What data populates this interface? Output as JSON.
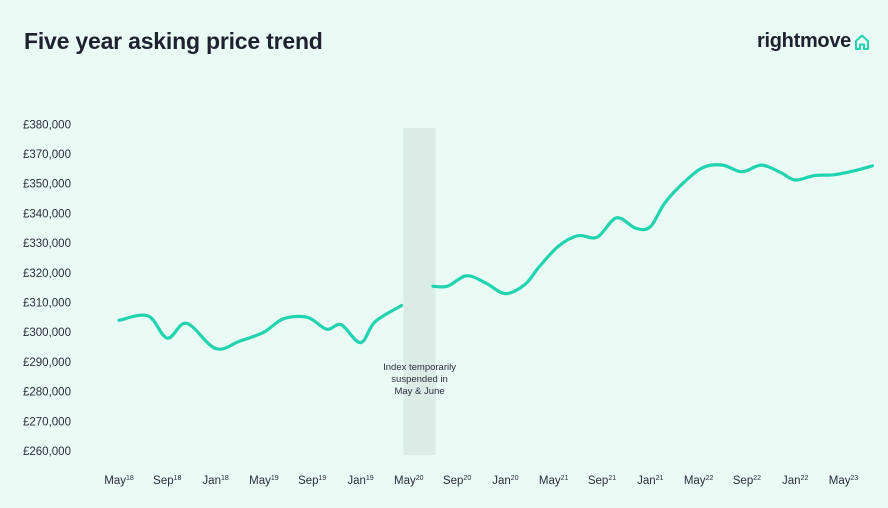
{
  "header": {
    "title": "Five year asking price trend",
    "brand": "rightmove",
    "brand_icon": "house-outline-icon"
  },
  "colors": {
    "background": "#e9fbf4",
    "line": "#22d3b0",
    "gap_band": "#dbece6",
    "text": "#1f2130"
  },
  "chart_data": {
    "type": "line",
    "title": "Five year asking price trend",
    "xlabel": "",
    "ylabel": "",
    "ylim": [
      260000,
      380000
    ],
    "grid": false,
    "y_ticks": [
      "£380,000",
      "£370,000",
      "£350,000",
      "£340,000",
      "£330,000",
      "£320,000",
      "£310,000",
      "£300,000",
      "£290,000",
      "£280,000",
      "£270,000",
      "£260,000"
    ],
    "x_ticks": [
      {
        "base": "May",
        "sup": "18"
      },
      {
        "base": "Sep",
        "sup": "18"
      },
      {
        "base": "Jan",
        "sup": "18"
      },
      {
        "base": "May",
        "sup": "19"
      },
      {
        "base": "Sep",
        "sup": "19"
      },
      {
        "base": "Jan",
        "sup": "19"
      },
      {
        "base": "May",
        "sup": "20"
      },
      {
        "base": "Sep",
        "sup": "20"
      },
      {
        "base": "Jan",
        "sup": "20"
      },
      {
        "base": "May",
        "sup": "21"
      },
      {
        "base": "Sep",
        "sup": "21"
      },
      {
        "base": "Jan",
        "sup": "21"
      },
      {
        "base": "May",
        "sup": "22"
      },
      {
        "base": "Sep",
        "sup": "22"
      },
      {
        "base": "Jan",
        "sup": "22"
      },
      {
        "base": "May",
        "sup": "23"
      }
    ],
    "annotation": [
      "Index temporarily",
      "suspended in",
      "May & June"
    ],
    "series": [
      {
        "segments": [
          [
            [
              0,
              304000
            ],
            [
              0.6,
              305500
            ],
            [
              1.0,
              298000
            ],
            [
              1.4,
              303000
            ],
            [
              2.0,
              294500
            ],
            [
              2.5,
              297000
            ],
            [
              3.0,
              300000
            ],
            [
              3.4,
              304500
            ],
            [
              3.9,
              305000
            ],
            [
              4.3,
              301000
            ],
            [
              4.6,
              302500
            ],
            [
              5.0,
              296500
            ],
            [
              5.3,
              303500
            ],
            [
              5.85,
              309000
            ]
          ],
          [
            [
              6.5,
              315500
            ],
            [
              6.8,
              315500
            ],
            [
              7.2,
              319000
            ],
            [
              7.6,
              316500
            ],
            [
              8.0,
              313000
            ],
            [
              8.4,
              316000
            ],
            [
              8.7,
              322000
            ],
            [
              9.1,
              329000
            ],
            [
              9.5,
              332500
            ],
            [
              9.9,
              332000
            ],
            [
              10.3,
              338500
            ],
            [
              10.7,
              335000
            ],
            [
              11.0,
              335500
            ],
            [
              11.3,
              343500
            ],
            [
              11.7,
              351000
            ],
            [
              12.1,
              361000
            ],
            [
              12.5,
              362500
            ],
            [
              12.9,
              358000
            ],
            [
              13.3,
              362500
            ],
            [
              13.7,
              357500
            ],
            [
              14.0,
              352500
            ],
            [
              14.4,
              355500
            ],
            [
              14.8,
              356000
            ],
            [
              15.2,
              358500
            ],
            [
              15.6,
              362000
            ]
          ]
        ]
      }
    ]
  }
}
